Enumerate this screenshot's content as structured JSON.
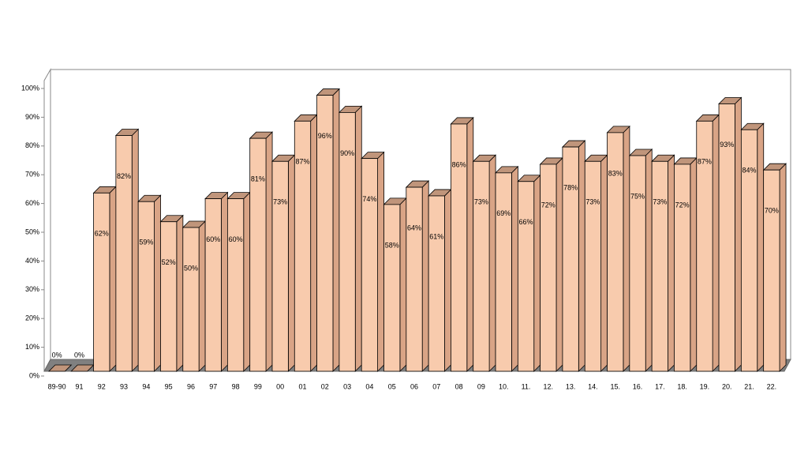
{
  "chart_data": {
    "type": "bar3d",
    "categories": [
      "89-90",
      "91",
      "92",
      "93",
      "94",
      "95",
      "96",
      "97",
      "98",
      "99",
      "00",
      "01",
      "02",
      "03",
      "04",
      "05",
      "06",
      "07",
      "08",
      "09",
      "10.",
      "11.",
      "12.",
      "13.",
      "14.",
      "15.",
      "16.",
      "17.",
      "18.",
      "19.",
      "20.",
      "21.",
      "22."
    ],
    "values": [
      0,
      0,
      62,
      82,
      59,
      52,
      50,
      60,
      60,
      81,
      73,
      87,
      96,
      90,
      74,
      58,
      64,
      61,
      86,
      73,
      69,
      66,
      72,
      78,
      73,
      83,
      75,
      73,
      72,
      87,
      93,
      84,
      70
    ],
    "value_labels": [
      "0%",
      "0%",
      "62%",
      "82%",
      "59%",
      "52%",
      "50%",
      "60%",
      "60%",
      "81%",
      "73%",
      "87%",
      "96%",
      "90%",
      "74%",
      "58%",
      "64%",
      "61%",
      "86%",
      "73%",
      "69%",
      "66%",
      "72%",
      "78%",
      "73%",
      "83%",
      "75%",
      "73%",
      "72%",
      "87%",
      "93%",
      "84%",
      "70%"
    ],
    "color": "#f8cbad",
    "ylim": [
      0,
      100
    ],
    "yticks": [
      {
        "value": 0,
        "label": "0%"
      },
      {
        "value": 10,
        "label": "10%"
      },
      {
        "value": 20,
        "label": "20%"
      },
      {
        "value": 30,
        "label": "30%"
      },
      {
        "value": 40,
        "label": "40%"
      },
      {
        "value": 50,
        "label": "50%"
      },
      {
        "value": 60,
        "label": "60%"
      },
      {
        "value": 70,
        "label": "70%"
      },
      {
        "value": 80,
        "label": "80%"
      },
      {
        "value": 90,
        "label": "90%"
      },
      {
        "value": 100,
        "label": "100%"
      }
    ]
  }
}
